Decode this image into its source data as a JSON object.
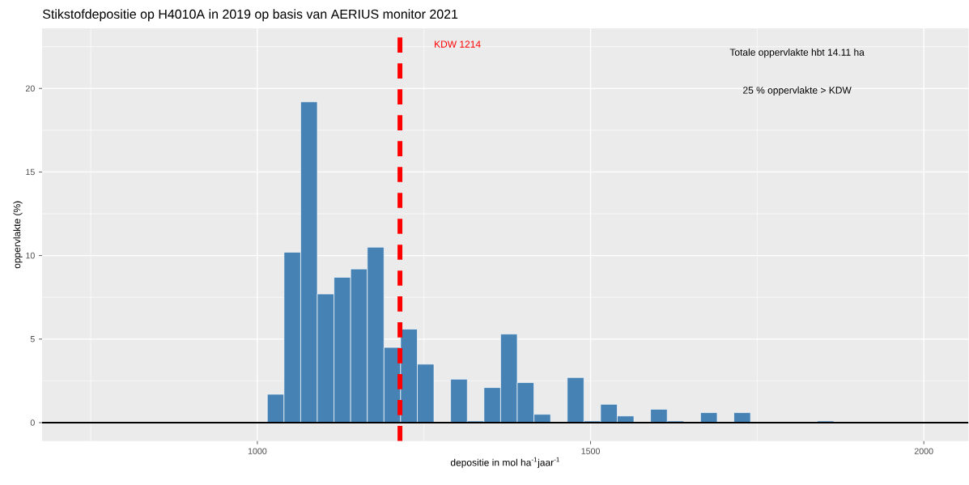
{
  "chart_data": {
    "type": "histogram",
    "title": "Stikstofdepositie op H4010A in 2019 op basis van AERIUS monitor 2021",
    "xlabel": "depositie in mol ha$^{-1}$jaar$^{-1}$",
    "ylabel": "oppervlakte (%)",
    "bins": [
      1015,
      1040,
      1065,
      1090,
      1115,
      1140,
      1165,
      1190,
      1215,
      1240,
      1265,
      1290,
      1315,
      1340,
      1365,
      1390,
      1415,
      1440,
      1465,
      1490,
      1515,
      1540,
      1565,
      1590,
      1615,
      1640,
      1665,
      1690,
      1715,
      1740,
      1765,
      1790,
      1815,
      1840,
      1865
    ],
    "values": [
      1.7,
      10.2,
      19.2,
      7.7,
      8.7,
      9.2,
      10.5,
      4.5,
      5.6,
      3.5,
      0,
      2.6,
      0.1,
      2.1,
      5.3,
      2.4,
      0.5,
      0,
      2.7,
      0.1,
      1.1,
      0.4,
      0,
      0.8,
      0.1,
      0,
      0.6,
      0,
      0.6,
      0,
      0,
      0,
      0,
      0.1
    ],
    "color": "#4682b4",
    "xlim": [
      677,
      2067
    ],
    "ylim": [
      -1.1,
      23.6
    ],
    "xticks": [
      1000,
      1500,
      2000
    ],
    "yticks": [
      0,
      5,
      10,
      15,
      20
    ],
    "grid": true,
    "ref_lines": [
      {
        "axis": "y",
        "value": 0,
        "color": "#000000"
      },
      {
        "axis": "x",
        "value": 1214,
        "label": "KDW 1214",
        "color": "#ff0000",
        "line_style": "dashed"
      }
    ],
    "annotations": [
      "Totale oppervlakte hbt 14.11 ha",
      "25 % oppervlakte > KDW"
    ]
  }
}
